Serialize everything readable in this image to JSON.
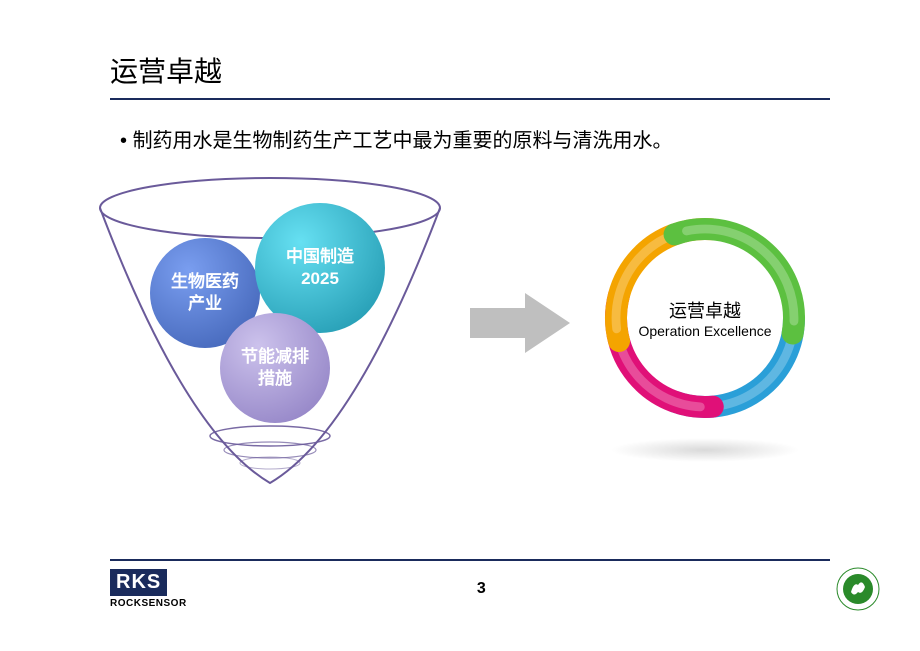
{
  "title": "运营卓越",
  "bullet_text": "制药用水是生物制药生产工艺中最为重要的原料与清洗用水。",
  "funnel": {
    "border_color": "#6a5a9a",
    "circles": [
      {
        "key": "blue",
        "label": "生物医药\n产业",
        "fill_top": "#6a8de0",
        "fill_bottom": "#3b5db0"
      },
      {
        "key": "teal",
        "label": "中国制造\n2025",
        "fill_top": "#55d5e8",
        "fill_bottom": "#1990a8"
      },
      {
        "key": "purple",
        "label": "节能减排\n措施",
        "fill_top": "#c0b5e4",
        "fill_bottom": "#8a7ac0"
      }
    ]
  },
  "arrow_color": "#bfbfbf",
  "ring": {
    "label_cn": "运营卓越",
    "label_en": "Operation Excellence",
    "segments": [
      {
        "color": "#2a9fd8",
        "start": 90,
        "end": 200
      },
      {
        "color": "#e01078",
        "start": 175,
        "end": 285
      },
      {
        "color": "#f4a400",
        "start": 255,
        "end": 365
      },
      {
        "color": "#5cc040",
        "start": 340,
        "end": 460
      }
    ],
    "r_outer": 100,
    "r_inner": 78
  },
  "footer": {
    "rks_box": "RKS",
    "rks_sub": "ROCKSENSOR",
    "page_num": "3",
    "cofdie_color": "#2a8a2a"
  }
}
